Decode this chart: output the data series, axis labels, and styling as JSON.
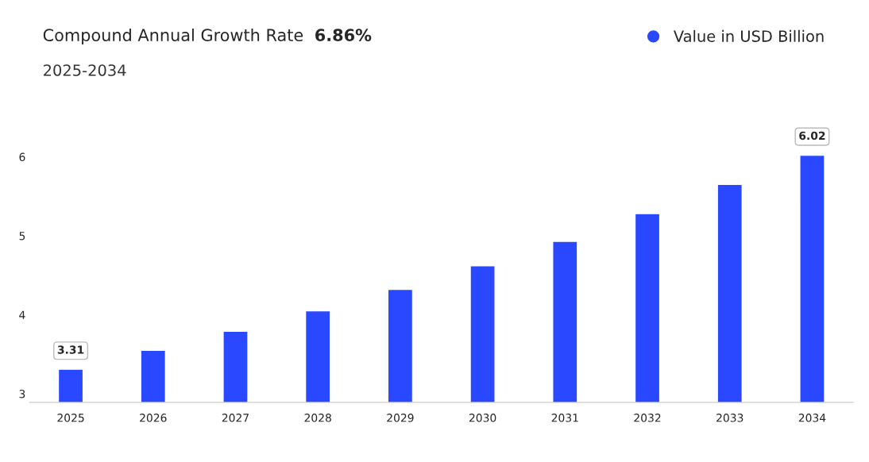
{
  "chart_data": {
    "type": "bar",
    "title": "Compound Annual Growth Rate",
    "subtitle": "2025-2034",
    "annotations": [
      "6.86%"
    ],
    "categories": [
      "2025",
      "2026",
      "2027",
      "2028",
      "2029",
      "2030",
      "2031",
      "2032",
      "2033",
      "2034"
    ],
    "series": [
      {
        "name": "Value in USD Billion",
        "color": "#2a48ff",
        "values": [
          3.31,
          3.55,
          3.79,
          4.05,
          4.32,
          4.62,
          4.93,
          5.28,
          5.65,
          6.02
        ],
        "value_labels": [
          "3.31",
          null,
          null,
          null,
          null,
          null,
          null,
          null,
          null,
          "6.02"
        ]
      }
    ],
    "ylim": [
      2.89,
      6.4
    ],
    "yticks": [
      3,
      4,
      5,
      6
    ],
    "grid": false,
    "legend": "top right"
  }
}
